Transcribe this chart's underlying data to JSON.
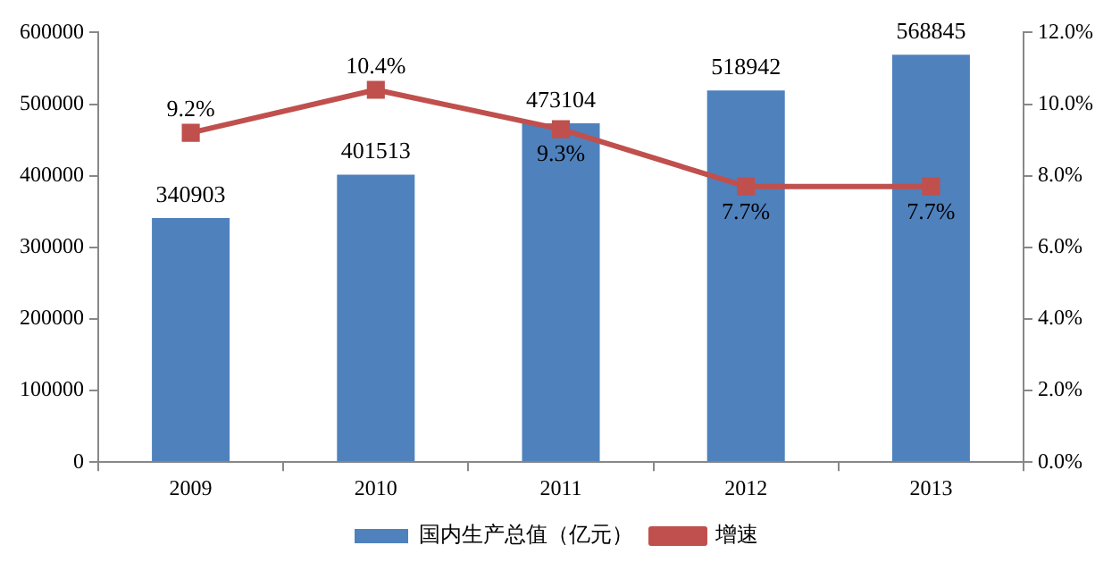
{
  "chart_data": {
    "type": "bar",
    "categories": [
      "2009",
      "2010",
      "2011",
      "2012",
      "2013"
    ],
    "series": [
      {
        "name": "国内生产总值（亿元）",
        "color": "#4f81bd",
        "values": [
          340903,
          401513,
          473104,
          518942,
          568845
        ],
        "value_labels": [
          "340903",
          "401513",
          "473104",
          "518942",
          "568845"
        ]
      },
      {
        "name": "增速",
        "type": "line",
        "axis": "y2",
        "color": "#c0504d",
        "marker": "square",
        "values": [
          9.2,
          10.4,
          9.3,
          7.7,
          7.7
        ],
        "value_labels": [
          "9.2%",
          "10.4%",
          "9.3%",
          "7.7%",
          "7.7%"
        ]
      }
    ],
    "ylim": [
      0,
      600000
    ],
    "yticks": [
      0,
      100000,
      200000,
      300000,
      400000,
      500000,
      600000
    ],
    "y2lim": [
      0,
      12
    ],
    "y2ticks": [
      {
        "value": 0,
        "label": "0.0%"
      },
      {
        "value": 2,
        "label": "2.0%"
      },
      {
        "value": 4,
        "label": "4.0%"
      },
      {
        "value": 6,
        "label": "6.0%"
      },
      {
        "value": 8,
        "label": "8.0%"
      },
      {
        "value": 10,
        "label": "10.0%"
      },
      {
        "value": 12,
        "label": "12.0%"
      }
    ],
    "grid": false,
    "legend": "bottom"
  }
}
